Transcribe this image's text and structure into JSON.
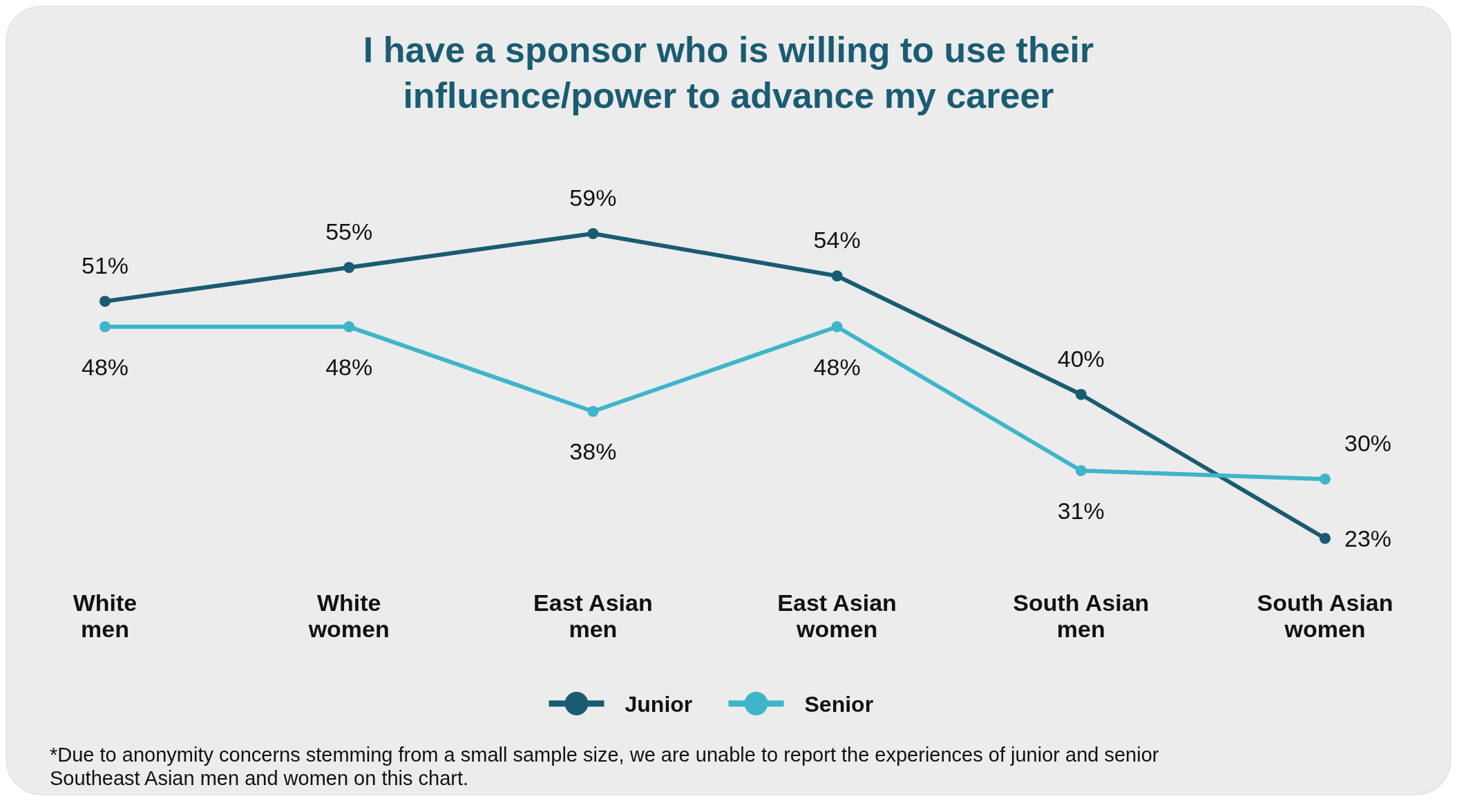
{
  "chart_data": {
    "type": "line",
    "title": "I have a sponsor who is willing to use their influence/power to advance my career",
    "categories": [
      "White men",
      "White women",
      "East Asian men",
      "East Asian women",
      "South Asian men",
      "South Asian women"
    ],
    "series": [
      {
        "name": "Junior",
        "color": "#195c72",
        "values": [
          51,
          55,
          59,
          54,
          40,
          23
        ],
        "value_labels": [
          "51%",
          "55%",
          "59%",
          "54%",
          "40%",
          "23%"
        ]
      },
      {
        "name": "Senior",
        "color": "#3fb5c9",
        "values": [
          48,
          48,
          38,
          48,
          31,
          30
        ],
        "value_labels": [
          "48%",
          "48%",
          "38%",
          "48%",
          "31%",
          "30%"
        ]
      }
    ],
    "marker": "circle",
    "legend": "bottom",
    "grid": false,
    "tick_labels": "x",
    "annotations": [
      "*Due to anonymity concerns stemming from a small sample size, we are unable to report the experiences of junior and senior Southeast Asian men and women on this chart."
    ]
  }
}
